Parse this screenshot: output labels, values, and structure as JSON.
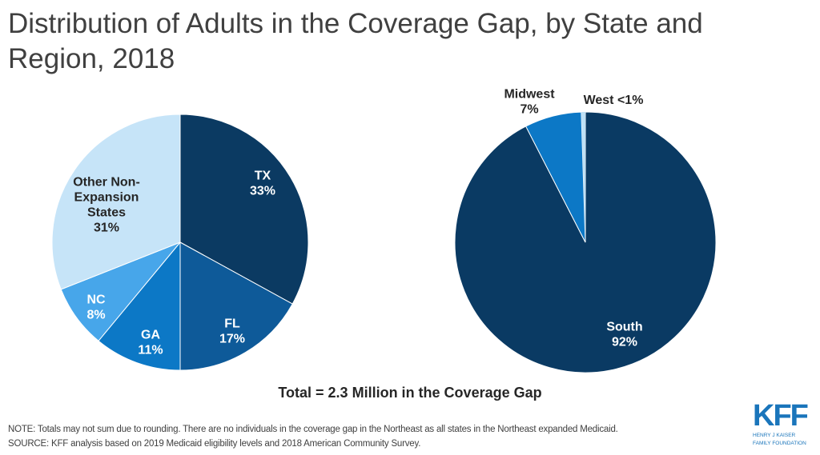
{
  "title": "Distribution of Adults in the Coverage Gap, by State and Region, 2018",
  "chart_data": [
    {
      "type": "pie",
      "categories": [
        "TX",
        "FL",
        "GA",
        "NC",
        "Other Non-Expansion States"
      ],
      "values": [
        33,
        17,
        11,
        8,
        31
      ],
      "labels": [
        {
          "name": "TX",
          "value": "33%"
        },
        {
          "name": "FL",
          "value": "17%"
        },
        {
          "name": "GA",
          "value": "11%"
        },
        {
          "name": "NC",
          "value": "8%"
        },
        {
          "name": "Other Non-Expansion States",
          "value": "31%"
        }
      ],
      "colors": [
        "#0b3a62",
        "#0e5a99",
        "#0c78c6",
        "#47a6ea",
        "#c6e4f8"
      ],
      "label_colors": [
        "#ffffff",
        "#ffffff",
        "#ffffff",
        "#ffffff",
        "#262626"
      ]
    },
    {
      "type": "pie",
      "categories": [
        "South",
        "Midwest",
        "West"
      ],
      "values": [
        92,
        7,
        0.5
      ],
      "labels": [
        {
          "name": "South",
          "value": "92%"
        },
        {
          "name": "Midwest",
          "value": "7%"
        },
        {
          "name": "West",
          "value": "<1%"
        }
      ],
      "colors": [
        "#0a3a63",
        "#0c78c6",
        "#bfe1f6"
      ],
      "label_colors": [
        "#ffffff",
        "#262626",
        "#262626"
      ]
    }
  ],
  "total": "Total = 2.3 Million in the Coverage Gap",
  "note": "NOTE: Totals may not sum due to rounding. There are no individuals in the coverage gap in the Northeast as all states in the Northeast expanded Medicaid.",
  "source": "SOURCE: KFF analysis based on 2019 Medicaid eligibility levels and 2018 American Community Survey.",
  "logo": {
    "text": "KFF",
    "line1": "HENRY J KAISER",
    "line2": "FAMILY FOUNDATION"
  }
}
